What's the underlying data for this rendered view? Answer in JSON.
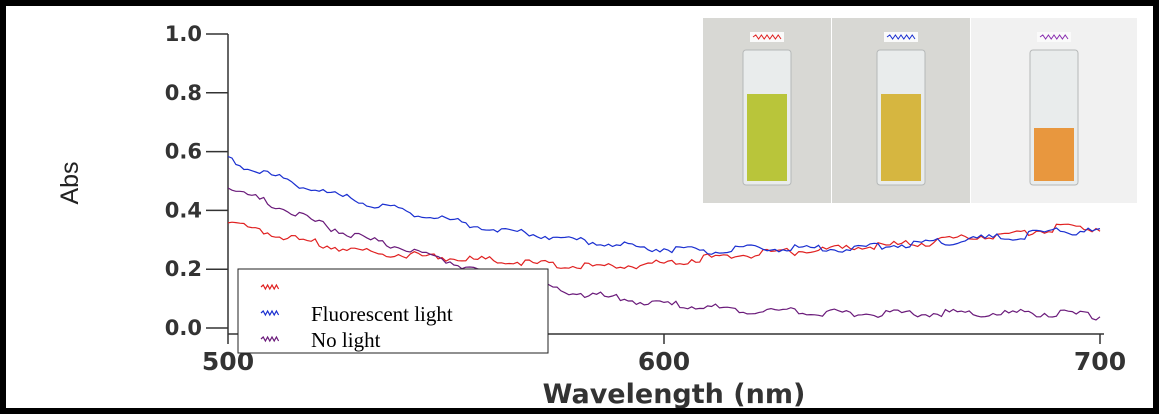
{
  "chart_data": {
    "type": "line",
    "xlabel": "Wavelength (nm)",
    "ylabel": "Abs",
    "xlim": [
      500,
      700
    ],
    "ylim": [
      0.0,
      1.0
    ],
    "x_ticks": [
      "500",
      "600",
      "700"
    ],
    "y_ticks": [
      "0.0",
      "0.2",
      "0.4",
      "0.6",
      "0.8",
      "1.0"
    ],
    "legend_position": "bottom-left",
    "series": [
      {
        "key": "red",
        "color": "#e02020",
        "x": [
          500,
          510,
          520,
          530,
          540,
          550,
          560,
          570,
          580,
          590,
          600,
          610,
          620,
          630,
          640,
          650,
          660,
          670,
          680,
          690,
          700
        ],
        "y": [
          0.36,
          0.32,
          0.29,
          0.26,
          0.25,
          0.24,
          0.23,
          0.22,
          0.21,
          0.21,
          0.22,
          0.24,
          0.25,
          0.26,
          0.27,
          0.28,
          0.29,
          0.31,
          0.32,
          0.34,
          0.34
        ]
      },
      {
        "key": "blue",
        "name": "Fluorescent light",
        "color": "#1a2fd0",
        "x": [
          500,
          510,
          520,
          530,
          540,
          550,
          560,
          570,
          580,
          590,
          600,
          610,
          620,
          630,
          640,
          650,
          660,
          670,
          680,
          690,
          700
        ],
        "y": [
          0.57,
          0.52,
          0.47,
          0.43,
          0.4,
          0.37,
          0.34,
          0.32,
          0.3,
          0.28,
          0.27,
          0.26,
          0.27,
          0.27,
          0.27,
          0.28,
          0.29,
          0.3,
          0.31,
          0.33,
          0.33
        ]
      },
      {
        "key": "purple",
        "name": "No light",
        "color": "#6a1a7a",
        "x": [
          500,
          510,
          520,
          530,
          540,
          550,
          560,
          570,
          580,
          590,
          600,
          610,
          620,
          630,
          640,
          650,
          660,
          670,
          680,
          690,
          700
        ],
        "y": [
          0.48,
          0.42,
          0.36,
          0.31,
          0.27,
          0.23,
          0.19,
          0.15,
          0.12,
          0.1,
          0.08,
          0.07,
          0.06,
          0.06,
          0.05,
          0.05,
          0.05,
          0.05,
          0.05,
          0.05,
          0.04
        ]
      }
    ]
  },
  "legend": {
    "entries": [
      {
        "series": "red",
        "label": ""
      },
      {
        "series": "blue",
        "label": "Fluorescent light"
      },
      {
        "series": "purple",
        "label": "No light"
      }
    ]
  },
  "photos": [
    {
      "key": "red",
      "liquid_color": "#b9c53a",
      "label_color": "#e02020"
    },
    {
      "key": "blue",
      "liquid_color": "#d6b640",
      "label_color": "#1a2fd0"
    },
    {
      "key": "purple",
      "liquid_color": "#e8973e",
      "label_color": "#8a2fb0"
    }
  ]
}
